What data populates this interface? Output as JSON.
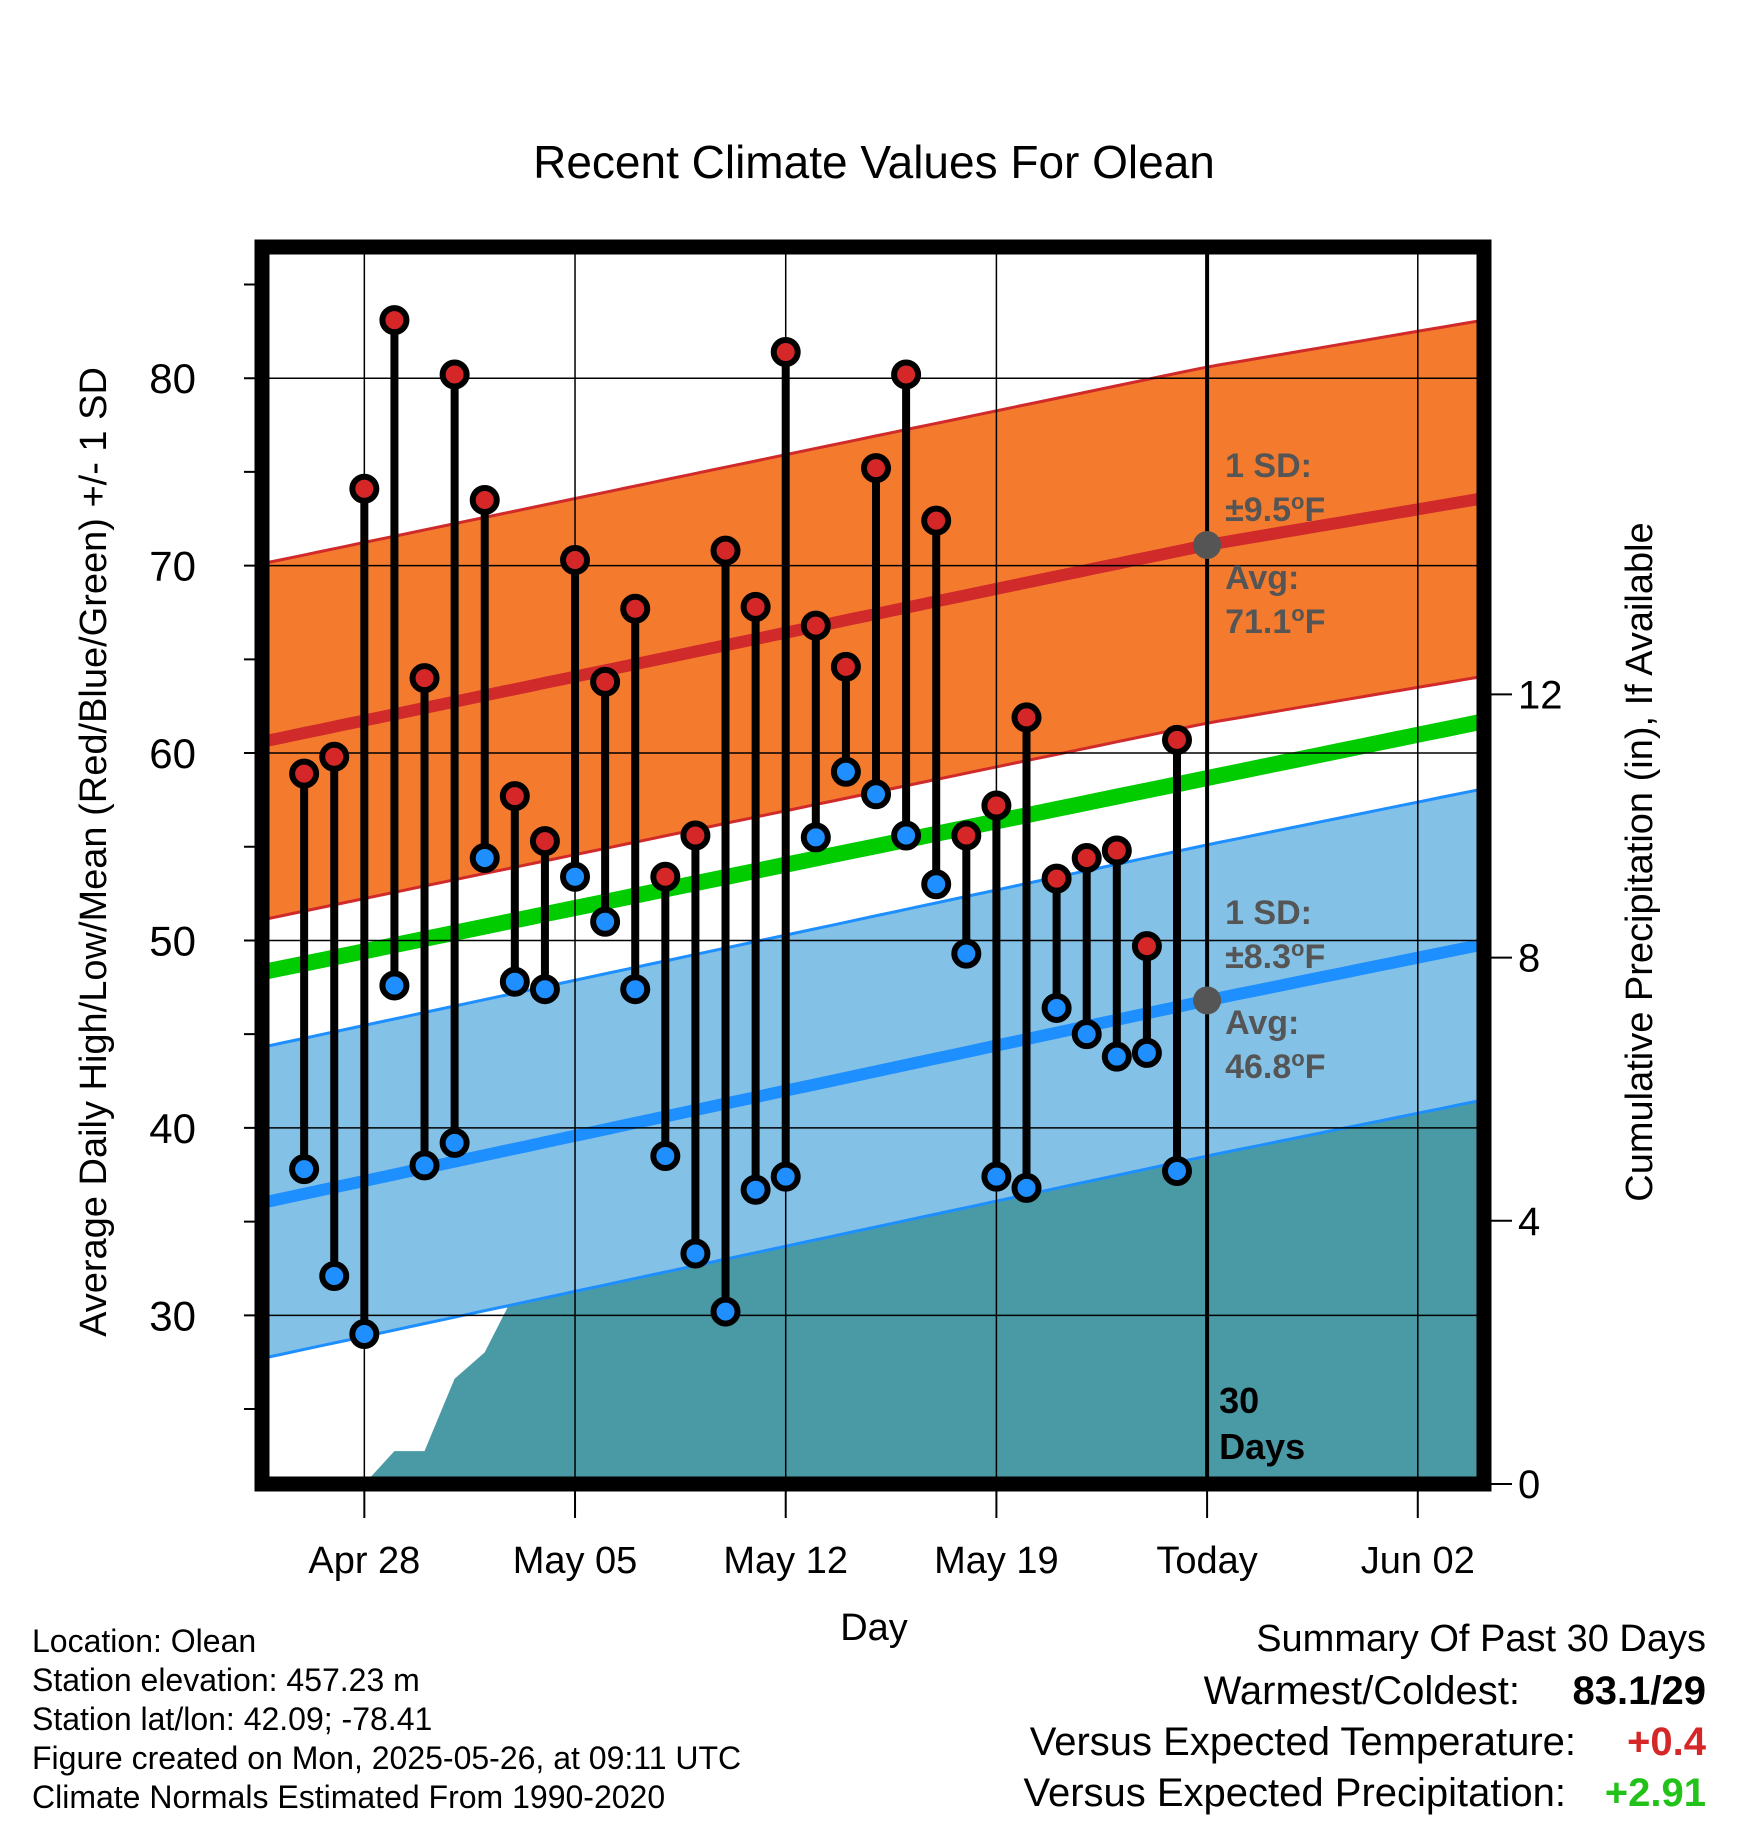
{
  "chart_data": {
    "type": "line",
    "title": "Recent Climate Values For Olean",
    "xlabel": "Day",
    "ylabel": "Average Daily High/Low/Mean (Red/Blue/Green) +/- 1 SD",
    "y2label": "Cumulative Precipitation (in), If Available",
    "ylim": [
      21,
      87
    ],
    "y2lim": [
      0,
      18.8
    ],
    "xlim": [
      -3.4,
      37.2
    ],
    "yticks": [
      30,
      40,
      50,
      60,
      70,
      80
    ],
    "y2ticks": [
      0,
      4,
      8,
      12
    ],
    "xticks": [
      {
        "day": 0,
        "label": "Apr 28"
      },
      {
        "day": 7,
        "label": "May 05"
      },
      {
        "day": 14,
        "label": "May 12"
      },
      {
        "day": 21,
        "label": "May 19"
      },
      {
        "day": 28,
        "label": "Today"
      },
      {
        "day": 35,
        "label": "Jun 02"
      }
    ],
    "today_day": 28,
    "days": [
      -2,
      -1,
      0,
      1,
      2,
      3,
      4,
      5,
      6,
      7,
      8,
      9,
      10,
      11,
      12,
      13,
      14,
      15,
      16,
      17,
      18,
      19,
      20,
      21,
      22,
      23,
      24,
      25,
      26,
      27
    ],
    "highs": [
      58.9,
      59.8,
      74.1,
      83.1,
      64.0,
      80.2,
      73.5,
      57.7,
      55.3,
      70.3,
      63.8,
      67.7,
      53.4,
      55.6,
      70.8,
      67.8,
      81.4,
      66.8,
      64.6,
      75.2,
      80.2,
      72.4,
      55.6,
      57.2,
      61.9,
      53.3,
      54.4,
      54.8,
      49.7,
      60.7
    ],
    "lows": [
      37.8,
      32.1,
      29.0,
      47.6,
      38.0,
      39.2,
      54.4,
      47.8,
      47.4,
      53.4,
      51.0,
      47.4,
      38.5,
      33.3,
      30.2,
      36.7,
      37.4,
      55.5,
      59.0,
      57.8,
      55.6,
      53.0,
      49.3,
      37.4,
      36.8,
      46.4,
      45.0,
      43.8,
      44.0,
      37.7
    ],
    "normal_high": {
      "days": [
        -3.4,
        28,
        37.2
      ],
      "values": [
        60.6,
        71.1,
        73.6
      ]
    },
    "normal_low": {
      "days": [
        -3.4,
        28,
        37.2
      ],
      "values": [
        36.0,
        46.8,
        49.8
      ]
    },
    "normal_mean": {
      "days": [
        -3.4,
        37.2
      ],
      "values": [
        48.3,
        61.7
      ]
    },
    "high_sd": 9.5,
    "low_sd": 8.3,
    "precip": {
      "days": [
        0,
        1,
        2,
        3,
        4,
        5,
        6,
        7,
        8,
        9,
        10,
        11,
        12,
        13,
        14,
        15,
        16,
        17,
        18,
        19,
        20,
        21,
        22,
        23,
        24,
        25,
        26,
        27,
        28,
        37.2
      ],
      "values": [
        0.0,
        0.5,
        0.5,
        1.6,
        2.0,
        2.9,
        3.0,
        3.4,
        3.7,
        3.7,
        3.7,
        3.7,
        3.7,
        3.7,
        3.7,
        3.9,
        3.9,
        4.0,
        4.8,
        5.0,
        5.0,
        5.0,
        5.0,
        6.0,
        6.3,
        6.3,
        6.3,
        6.3,
        6.3,
        6.3
      ]
    },
    "annotations": {
      "high_sd_label": [
        "1 SD:",
        "±9.5",
        "o",
        "F"
      ],
      "high_avg_label": [
        "Avg:",
        "71.1",
        "o",
        "F"
      ],
      "low_sd_label": [
        "1 SD:",
        "±8.3",
        "o",
        "F"
      ],
      "low_avg_label": [
        "Avg:",
        "46.8",
        "o",
        "F"
      ],
      "days_label": [
        "30",
        "Days"
      ]
    },
    "colors": {
      "high_band": "#f47b2e",
      "high_line": "#d02a2a",
      "low_band": "#84c1e6",
      "low_line": "#1e8fff",
      "mean_line": "#00cc00",
      "precip": "#4a9aa6",
      "high_marker": "#d62728",
      "low_marker": "#1f8fff",
      "annotation_text": "#555555"
    }
  },
  "metadata": {
    "location": "Location: Olean",
    "elevation": "Station elevation: 457.23 m",
    "latlon": "Station lat/lon: 42.09; -78.41",
    "created": "Figure created on Mon, 2025-05-26, at 09:11 UTC",
    "normals": "Climate Normals Estimated From 1990-2020"
  },
  "summary": {
    "heading": "Summary Of Past 30 Days",
    "warm_cold_label": "Warmest/Coldest:",
    "warm_cold_value": "83.1/29",
    "temp_label": "Versus Expected Temperature:",
    "temp_value": "+0.4",
    "precip_label": "Versus Expected Precipitation:",
    "precip_value": "+2.91"
  }
}
